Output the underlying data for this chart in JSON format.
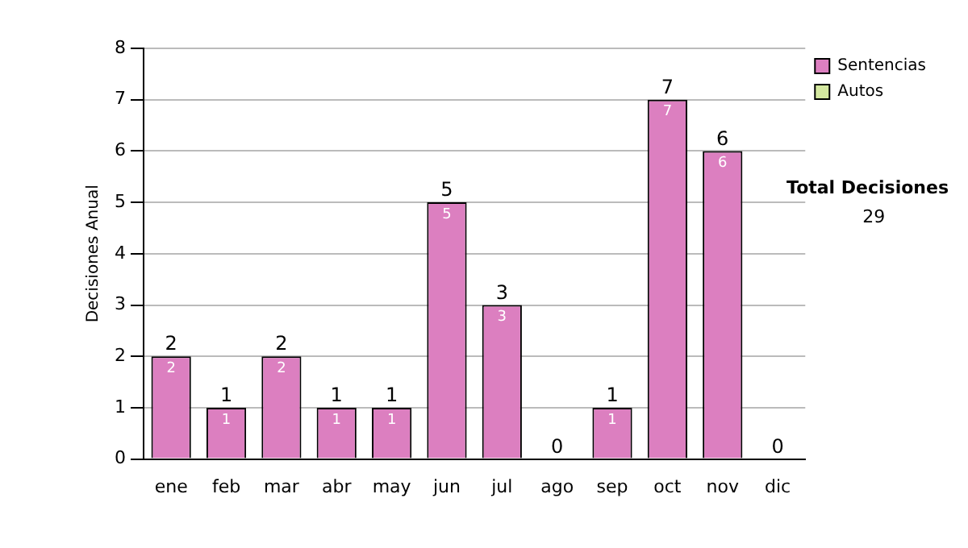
{
  "chart_data": {
    "type": "bar",
    "ylabel": "Decisiones Anual",
    "categories": [
      "ene",
      "feb",
      "mar",
      "abr",
      "may",
      "jun",
      "jul",
      "ago",
      "sep",
      "oct",
      "nov",
      "dic"
    ],
    "series": [
      {
        "name": "Sentencias",
        "color": "#dc7fc0",
        "values": [
          2,
          1,
          2,
          1,
          1,
          5,
          3,
          0,
          1,
          7,
          6,
          0
        ],
        "value_labels": [
          "2",
          "1",
          "2",
          "1",
          "1",
          "5",
          "3",
          null,
          "1",
          "7",
          "6",
          null
        ]
      },
      {
        "name": "Autos",
        "color": "#d4e8a0",
        "values": [
          0,
          0,
          0,
          0,
          0,
          0,
          0,
          0,
          0,
          0,
          0,
          0
        ]
      }
    ],
    "stacked": true,
    "ylim": [
      0,
      8
    ],
    "yticks": [
      0,
      1,
      2,
      3,
      4,
      5,
      6,
      7,
      8
    ],
    "grid": "y",
    "legend": "right",
    "totals": [
      "2",
      "1",
      "2",
      "1",
      "1",
      "5",
      "3",
      "0",
      "1",
      "7",
      "6",
      "0"
    ],
    "annotations": [
      "Total Decisiones",
      "29"
    ]
  }
}
